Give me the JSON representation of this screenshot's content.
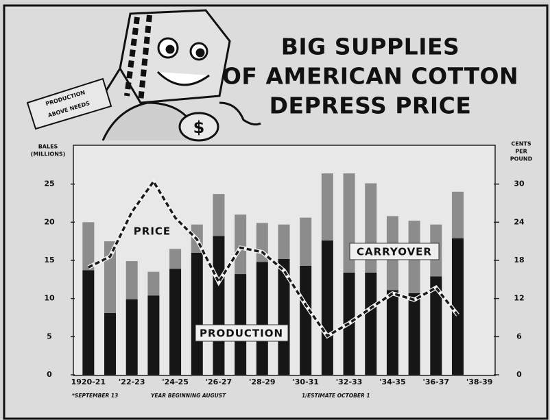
{
  "chart_data": {
    "type": "bar",
    "stacked": true,
    "title": [
      "BIG SUPPLIES",
      "OF AMERICAN COTTON",
      "DEPRESS PRICE"
    ],
    "cartoon_sign": [
      "PRODUCTION",
      "ABOVE NEEDS"
    ],
    "cartoon_bag": "$",
    "y_label": [
      "BALES",
      "(MILLIONS)"
    ],
    "y2_label": [
      "CENTS",
      "PER",
      "POUND"
    ],
    "annotations": {
      "price": "PRICE",
      "carryover": "CARRYOVER",
      "production": "PRODUCTION"
    },
    "footnotes": [
      "*SEPTEMBER 13",
      "YEAR BEGINNING AUGUST",
      "1/ESTIMATE OCTOBER 1"
    ],
    "categories": [
      "1920-21",
      null,
      "'22-23",
      null,
      "'24-25",
      null,
      "'26-27",
      null,
      "'28-29",
      null,
      "'30-31",
      null,
      "'32-33",
      null,
      "'34-35",
      null,
      "'36-37",
      null,
      "'38-39"
    ],
    "series": [
      {
        "name": "PRODUCTION",
        "type": "bar",
        "color": "#161616",
        "values": [
          13.7,
          8.1,
          9.9,
          10.4,
          13.9,
          16,
          18.2,
          13.2,
          14.8,
          15.2,
          14.3,
          17.6,
          13.4,
          13.4,
          11.1,
          10.7,
          12.9,
          17.9,
          null
        ]
      },
      {
        "name": "CARRYOVER",
        "type": "bar",
        "color": "#8c8c8c",
        "values": [
          6.3,
          9.4,
          5,
          3.1,
          2.6,
          3.7,
          5.5,
          7.8,
          5.1,
          4.5,
          6.3,
          8.8,
          13,
          11.7,
          9.7,
          9.5,
          6.8,
          6.1,
          null
        ]
      },
      {
        "name": "PRICE",
        "type": "line",
        "axis": "y2",
        "color": "#1a1a1a",
        "values": [
          16.9,
          18.6,
          25.6,
          30.4,
          24.7,
          21.3,
          14.6,
          20,
          19.3,
          16.4,
          11,
          6.1,
          8.1,
          10.5,
          12.8,
          11.8,
          13.7,
          9.4,
          null
        ]
      }
    ],
    "ylim": [
      0,
      30
    ],
    "yticks": [
      0,
      5,
      10,
      15,
      20,
      25
    ],
    "y2lim": [
      0,
      36
    ],
    "y2ticks": [
      0,
      6,
      12,
      18,
      24,
      30
    ]
  }
}
